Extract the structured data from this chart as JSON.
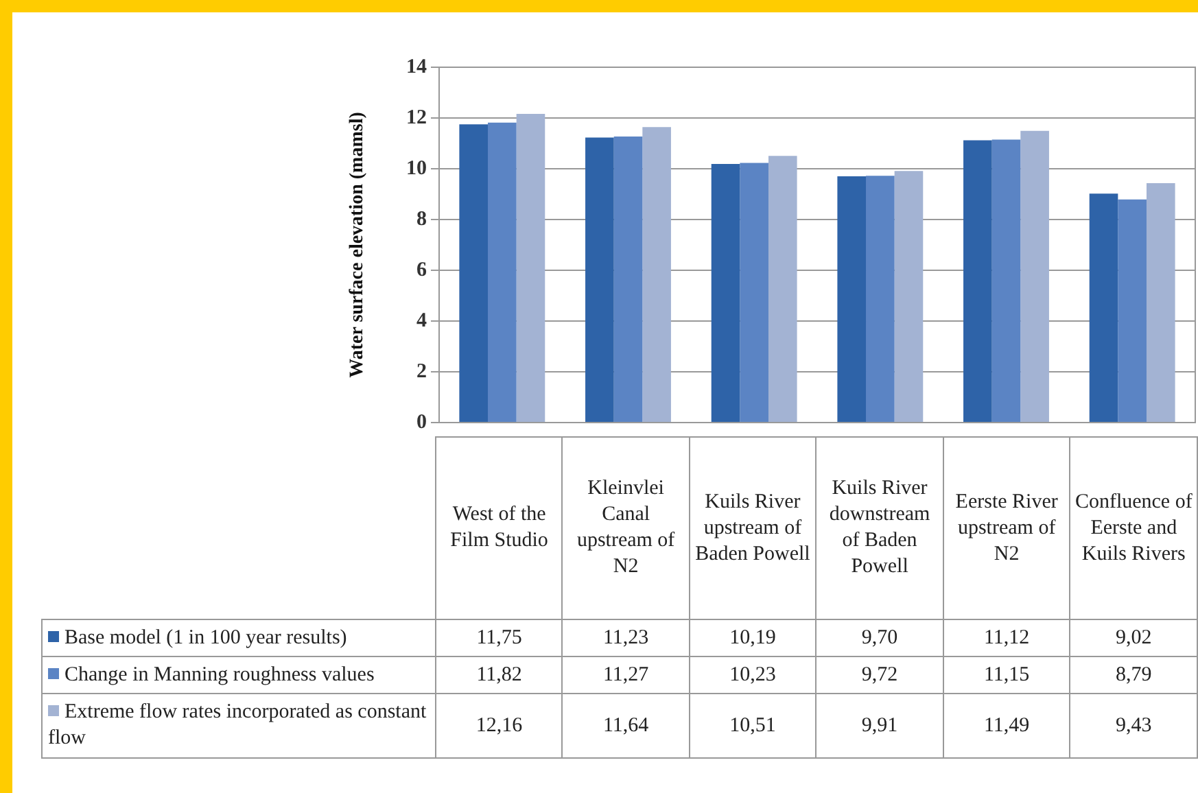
{
  "chart_data": {
    "type": "bar",
    "ylabel": "Water surface elevation (mamsl)",
    "categories": [
      "West of the Film Studio",
      "Kleinvlei Canal upstream of N2",
      "Kuils River upstream of Baden Powell",
      "Kuils River downstream of Baden Powell",
      "Eerste River upstream of N2",
      "Confluence of Eerste and Kuils Rivers"
    ],
    "series": [
      {
        "name": "Base model (1 in 100 year results)",
        "color": "#2e63a8",
        "values": [
          11.75,
          11.23,
          10.19,
          9.7,
          11.12,
          9.02
        ],
        "value_labels": [
          "11,75",
          "11,23",
          "10,19",
          "9,70",
          "11,12",
          "9,02"
        ]
      },
      {
        "name": "Change in Manning roughness values",
        "color": "#5b84c4",
        "values": [
          11.82,
          11.27,
          10.23,
          9.72,
          11.15,
          8.79
        ],
        "value_labels": [
          "11,82",
          "11,27",
          "10,23",
          "9,72",
          "11,15",
          "8,79"
        ]
      },
      {
        "name": "Extreme flow rates incorporated as constant flow",
        "color": "#a3b3d3",
        "values": [
          12.16,
          11.64,
          10.51,
          9.91,
          11.49,
          9.43
        ],
        "value_labels": [
          "12,16",
          "11,64",
          "10,51",
          "9,91",
          "11,49",
          "9,43"
        ]
      }
    ],
    "ylim": [
      0,
      14
    ],
    "yticks": [
      0,
      2,
      4,
      6,
      8,
      10,
      12,
      14
    ],
    "grid": "y",
    "legend": "bottom"
  }
}
